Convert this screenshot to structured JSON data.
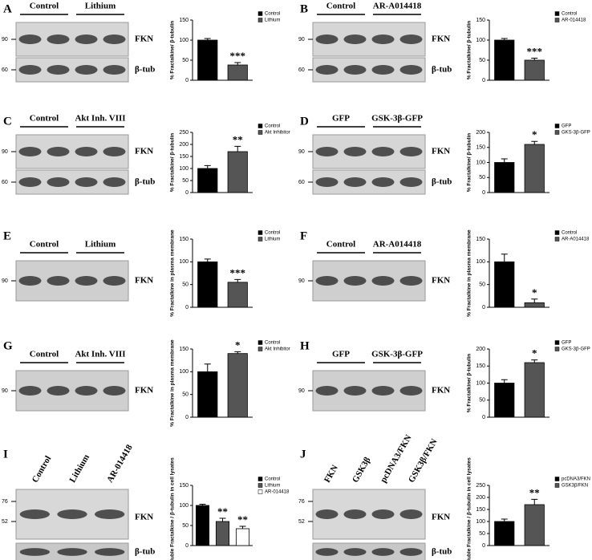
{
  "chart_data": [
    {
      "type": "bar",
      "panel": "A",
      "ylabel": "% Fractalkine/ β-tubulin",
      "categories": [
        "Control",
        "Lithium"
      ],
      "values": [
        100,
        38
      ],
      "errors": [
        4,
        6
      ],
      "colors": [
        "#000000",
        "#555555"
      ],
      "ylim": [
        0,
        150
      ],
      "yticks": [
        0,
        50,
        100,
        150
      ],
      "annotations": [
        "***"
      ],
      "blot": {
        "groups": [
          "Control",
          "Lithium"
        ],
        "markers": [
          "90",
          "60"
        ],
        "bands": [
          "FKN",
          "β-tub"
        ]
      }
    },
    {
      "type": "bar",
      "panel": "B",
      "ylabel": "% Fractalkine/ β-tubulin",
      "categories": [
        "Control",
        "AR-014418"
      ],
      "values": [
        100,
        50
      ],
      "errors": [
        4,
        5
      ],
      "colors": [
        "#000000",
        "#555555"
      ],
      "ylim": [
        0,
        150
      ],
      "yticks": [
        0,
        50,
        100,
        150
      ],
      "annotations": [
        "***"
      ],
      "blot": {
        "groups": [
          "Control",
          "AR-A014418"
        ],
        "markers": [
          "90",
          "60"
        ],
        "bands": [
          "FKN",
          "β-tub"
        ]
      }
    },
    {
      "type": "bar",
      "panel": "C",
      "ylabel": "% Fractalkine/ β-tubulin",
      "categories": [
        "Control",
        "Akt Inhibitor"
      ],
      "values": [
        100,
        170
      ],
      "errors": [
        12,
        22
      ],
      "colors": [
        "#000000",
        "#555555"
      ],
      "ylim": [
        0,
        250
      ],
      "yticks": [
        0,
        50,
        100,
        150,
        200,
        250
      ],
      "annotations": [
        "**"
      ],
      "blot": {
        "groups": [
          "Control",
          "Akt Inh. VIII"
        ],
        "markers": [
          "90",
          "60"
        ],
        "bands": [
          "FKN",
          "β-tub"
        ]
      }
    },
    {
      "type": "bar",
      "panel": "D",
      "ylabel": "% Fractalkine/ β-tubulin",
      "categories": [
        "GFP",
        "GKS-3β-GFP"
      ],
      "values": [
        100,
        160
      ],
      "errors": [
        12,
        10
      ],
      "colors": [
        "#000000",
        "#555555"
      ],
      "ylim": [
        0,
        200
      ],
      "yticks": [
        0,
        50,
        100,
        150,
        200
      ],
      "annotations": [
        "*"
      ],
      "blot": {
        "groups": [
          "GFP",
          "GSK-3β-GFP"
        ],
        "markers": [
          "90",
          "60"
        ],
        "bands": [
          "FKN",
          "β-tub"
        ]
      }
    },
    {
      "type": "bar",
      "panel": "E",
      "ylabel": "% Fractalkine in plasma membrane",
      "categories": [
        "Control",
        "Lithium"
      ],
      "values": [
        100,
        55
      ],
      "errors": [
        6,
        6
      ],
      "colors": [
        "#000000",
        "#555555"
      ],
      "ylim": [
        0,
        150
      ],
      "yticks": [
        0,
        50,
        100,
        150
      ],
      "annotations": [
        "***"
      ],
      "blot": {
        "groups": [
          "Control",
          "Lithium"
        ],
        "markers": [
          "90"
        ],
        "bands": [
          "FKN"
        ]
      }
    },
    {
      "type": "bar",
      "panel": "F",
      "ylabel": "% Fractalkine in plasma membrane",
      "categories": [
        "Control",
        "AR-A014418"
      ],
      "values": [
        100,
        10
      ],
      "errors": [
        17,
        8
      ],
      "colors": [
        "#000000",
        "#555555"
      ],
      "ylim": [
        0,
        150
      ],
      "yticks": [
        0,
        50,
        100,
        150
      ],
      "annotations": [
        "*"
      ],
      "blot": {
        "groups": [
          "Control",
          "AR-A014418"
        ],
        "markers": [
          "90"
        ],
        "bands": [
          "FKN"
        ]
      }
    },
    {
      "type": "bar",
      "panel": "G",
      "ylabel": "% Fractalkine in plasma membrane",
      "categories": [
        "Control",
        "Akt Inhibitor"
      ],
      "values": [
        100,
        140
      ],
      "errors": [
        17,
        4
      ],
      "colors": [
        "#000000",
        "#555555"
      ],
      "ylim": [
        0,
        150
      ],
      "yticks": [
        0,
        50,
        100,
        150
      ],
      "annotations": [
        "*"
      ],
      "blot": {
        "groups": [
          "Control",
          "Akt Inh. VIII"
        ],
        "markers": [
          "90"
        ],
        "bands": [
          "FKN"
        ]
      }
    },
    {
      "type": "bar",
      "panel": "H",
      "ylabel": "% Fractalkine/ β-tubulin",
      "categories": [
        "GFP",
        "GKS-3β-GFP"
      ],
      "values": [
        100,
        160
      ],
      "errors": [
        10,
        8
      ],
      "colors": [
        "#000000",
        "#555555"
      ],
      "ylim": [
        0,
        200
      ],
      "yticks": [
        0,
        50,
        100,
        150,
        200
      ],
      "annotations": [
        "*"
      ],
      "blot": {
        "groups": [
          "GFP",
          "GSK-3β-GFP"
        ],
        "markers": [
          "90"
        ],
        "bands": [
          "FKN"
        ]
      }
    },
    {
      "type": "bar",
      "panel": "I",
      "ylabel": "% Soluble Fractalkine / β-tubulin in cell lysates",
      "categories": [
        "Control",
        "Lithium",
        "AR-014418"
      ],
      "values": [
        100,
        60,
        42
      ],
      "errors": [
        3,
        8,
        6
      ],
      "colors": [
        "#000000",
        "#555555",
        "#ffffff"
      ],
      "ylim": [
        0,
        150
      ],
      "yticks": [
        0,
        50,
        100,
        150
      ],
      "annotations": [
        "**",
        "**"
      ],
      "blot": {
        "lanes": [
          "Control",
          "Lithium",
          "AR-014418"
        ],
        "markers": [
          "76",
          "52"
        ],
        "bands": [
          "FKN",
          "β-tub"
        ]
      }
    },
    {
      "type": "bar",
      "panel": "J",
      "ylabel": "% Soluble Fractalkine / β-tubulin in cell lysates",
      "categories": [
        "pcDNA3/FKN",
        "GSK3β/FKN"
      ],
      "values": [
        100,
        170
      ],
      "errors": [
        10,
        22
      ],
      "colors": [
        "#000000",
        "#555555"
      ],
      "ylim": [
        0,
        250
      ],
      "yticks": [
        0,
        50,
        100,
        150,
        200,
        250
      ],
      "annotations": [
        "**"
      ],
      "blot": {
        "lanes": [
          "FKN",
          "GSK3β",
          "pcDNA3/FKN",
          "GSK3β/FKN"
        ],
        "markers": [
          "76",
          "52"
        ],
        "bands": [
          "FKN",
          "β-tub"
        ]
      }
    }
  ]
}
